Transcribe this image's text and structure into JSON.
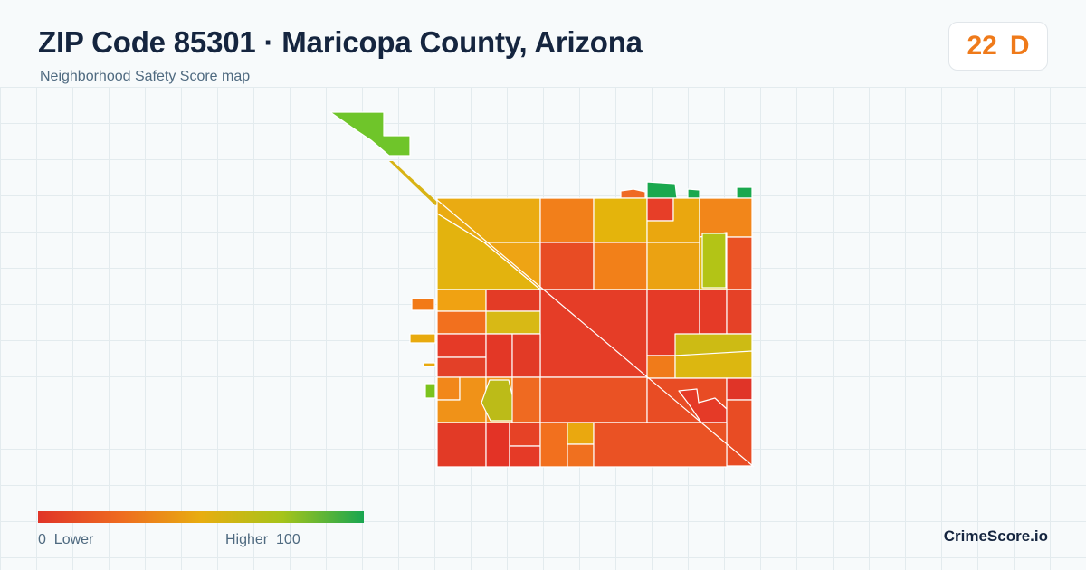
{
  "header": {
    "title": "ZIP Code 85301 · Maricopa County, Arizona",
    "subtitle": "Neighborhood Safety Score map"
  },
  "score": {
    "value": "22",
    "grade": "D",
    "color": "#ef7a1a"
  },
  "legend": {
    "min": "0",
    "min_label": "Lower",
    "max_label": "Higher",
    "max": "100",
    "colors": [
      "#e03428",
      "#ee6a20",
      "#e8ad10",
      "#a6c41a",
      "#19a651"
    ]
  },
  "brand": "CrimeScore.io"
}
